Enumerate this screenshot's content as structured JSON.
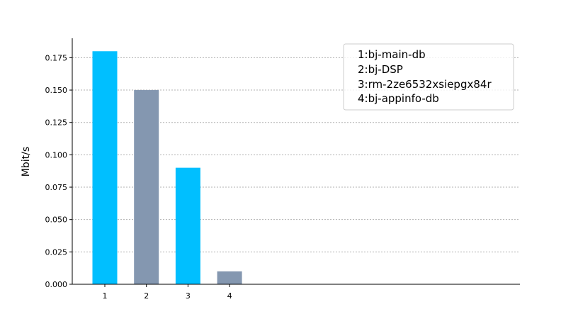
{
  "chart_data": {
    "type": "bar",
    "categories": [
      "1",
      "2",
      "3",
      "4"
    ],
    "values": [
      0.18,
      0.15,
      0.09,
      0.01
    ],
    "bar_colors": [
      "#00bfff",
      "#8497b0",
      "#00bfff",
      "#8497b0"
    ],
    "title": "",
    "xlabel": "",
    "ylabel": "Mbit/s",
    "ylim": [
      0,
      0.19
    ],
    "yticks": [
      "0.000",
      "0.025",
      "0.050",
      "0.075",
      "0.100",
      "0.125",
      "0.150",
      "0.175"
    ],
    "ytick_values": [
      0,
      0.025,
      0.05,
      0.075,
      0.1,
      0.125,
      0.15,
      0.175
    ],
    "grid": true,
    "legend_position": "top-right",
    "legend": [
      "1:bj-main-db",
      "2:bj-DSP",
      "3:rm-2ze6532xsiepgx84r",
      "4:bj-appinfo-db"
    ]
  }
}
